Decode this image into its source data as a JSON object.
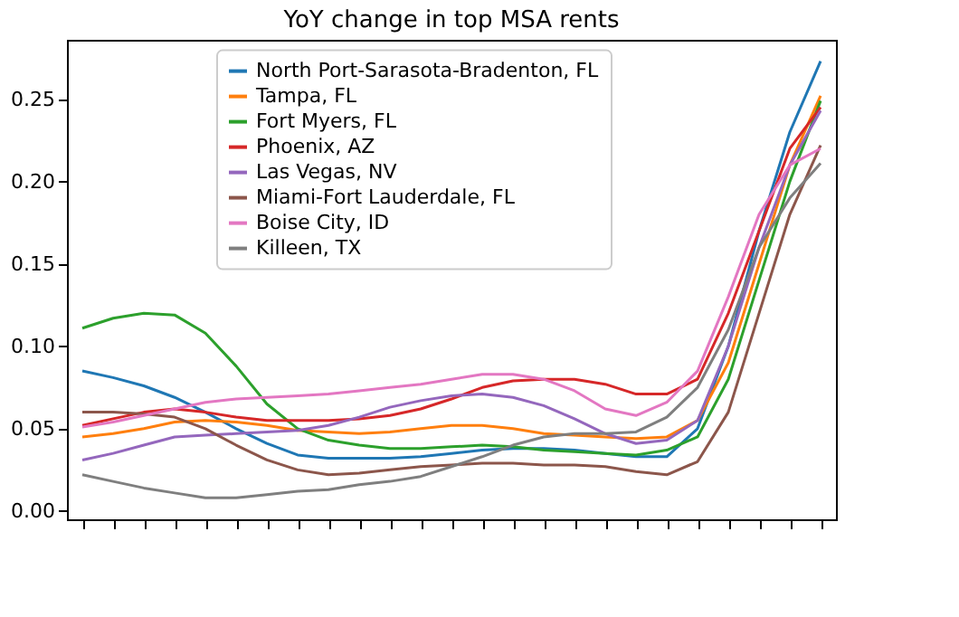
{
  "chart_data": {
    "type": "line",
    "title": "YoY change in top MSA rents",
    "categories": [
      null,
      null,
      null,
      null,
      null,
      null,
      null,
      null,
      null,
      null,
      null,
      null,
      null,
      null,
      null,
      null,
      null,
      null,
      null,
      null,
      null,
      null,
      null,
      null,
      null
    ],
    "ylim": [
      -0.005,
      0.286
    ],
    "yticks": [
      {
        "value": 0,
        "label": "0.00"
      },
      {
        "value": 0.05,
        "label": "0.05"
      },
      {
        "value": 0.1,
        "label": "0.10"
      },
      {
        "value": 0.15,
        "label": "0.15"
      },
      {
        "value": 0.2,
        "label": "0.20"
      },
      {
        "value": 0.25,
        "label": "0.25"
      }
    ],
    "grid": false,
    "legend": "top",
    "tick_labels": "y",
    "marker": "none",
    "line_style": "solid",
    "series": [
      {
        "name": "North Port-Sarasota-Bradenton, FL",
        "color": "#1f77b4",
        "values": [
          0.085,
          0.081,
          0.076,
          0.069,
          0.06,
          0.05,
          0.041,
          0.034,
          0.032,
          0.032,
          0.032,
          0.033,
          0.035,
          0.037,
          0.038,
          0.038,
          0.037,
          0.035,
          0.033,
          0.033,
          0.05,
          0.1,
          0.17,
          0.23,
          0.273
        ]
      },
      {
        "name": "Tampa, FL",
        "color": "#ff7f0e",
        "values": [
          0.045,
          0.047,
          0.05,
          0.054,
          0.055,
          0.054,
          0.052,
          0.049,
          0.048,
          0.047,
          0.048,
          0.05,
          0.052,
          0.052,
          0.05,
          0.047,
          0.046,
          0.045,
          0.044,
          0.045,
          0.055,
          0.09,
          0.15,
          0.21,
          0.252
        ]
      },
      {
        "name": "Fort Myers, FL",
        "color": "#2ca02c",
        "values": [
          0.111,
          0.117,
          0.12,
          0.119,
          0.108,
          0.088,
          0.065,
          0.05,
          0.043,
          0.04,
          0.038,
          0.038,
          0.039,
          0.04,
          0.039,
          0.037,
          0.036,
          0.035,
          0.034,
          0.037,
          0.045,
          0.08,
          0.14,
          0.2,
          0.249
        ]
      },
      {
        "name": "Phoenix, AZ",
        "color": "#d62728",
        "values": [
          0.052,
          0.056,
          0.06,
          0.062,
          0.06,
          0.057,
          0.055,
          0.055,
          0.055,
          0.056,
          0.058,
          0.062,
          0.068,
          0.075,
          0.079,
          0.08,
          0.08,
          0.077,
          0.071,
          0.071,
          0.08,
          0.12,
          0.17,
          0.22,
          0.245
        ]
      },
      {
        "name": "Las Vegas, NV",
        "color": "#9467bd",
        "values": [
          0.031,
          0.035,
          0.04,
          0.045,
          0.046,
          0.047,
          0.048,
          0.049,
          0.052,
          0.057,
          0.063,
          0.067,
          0.07,
          0.071,
          0.069,
          0.064,
          0.056,
          0.047,
          0.041,
          0.043,
          0.055,
          0.1,
          0.16,
          0.21,
          0.243
        ]
      },
      {
        "name": "Miami-Fort Lauderdale, FL",
        "color": "#8c564b",
        "values": [
          0.06,
          0.06,
          0.059,
          0.057,
          0.05,
          0.04,
          0.031,
          0.025,
          0.022,
          0.023,
          0.025,
          0.027,
          0.028,
          0.029,
          0.029,
          0.028,
          0.028,
          0.027,
          0.024,
          0.022,
          0.03,
          0.06,
          0.12,
          0.18,
          0.222
        ]
      },
      {
        "name": "Boise City, ID",
        "color": "#e377c2",
        "values": [
          0.051,
          0.054,
          0.058,
          0.062,
          0.066,
          0.068,
          0.069,
          0.07,
          0.071,
          0.073,
          0.075,
          0.077,
          0.08,
          0.083,
          0.083,
          0.08,
          0.073,
          0.062,
          0.058,
          0.066,
          0.085,
          0.13,
          0.18,
          0.21,
          0.22
        ]
      },
      {
        "name": "Killeen, TX",
        "color": "#7f7f7f",
        "values": [
          0.022,
          0.018,
          0.014,
          0.011,
          0.008,
          0.008,
          0.01,
          0.012,
          0.013,
          0.016,
          0.018,
          0.021,
          0.027,
          0.033,
          0.04,
          0.045,
          0.047,
          0.047,
          0.048,
          0.057,
          0.075,
          0.11,
          0.16,
          0.19,
          0.211
        ]
      }
    ]
  }
}
